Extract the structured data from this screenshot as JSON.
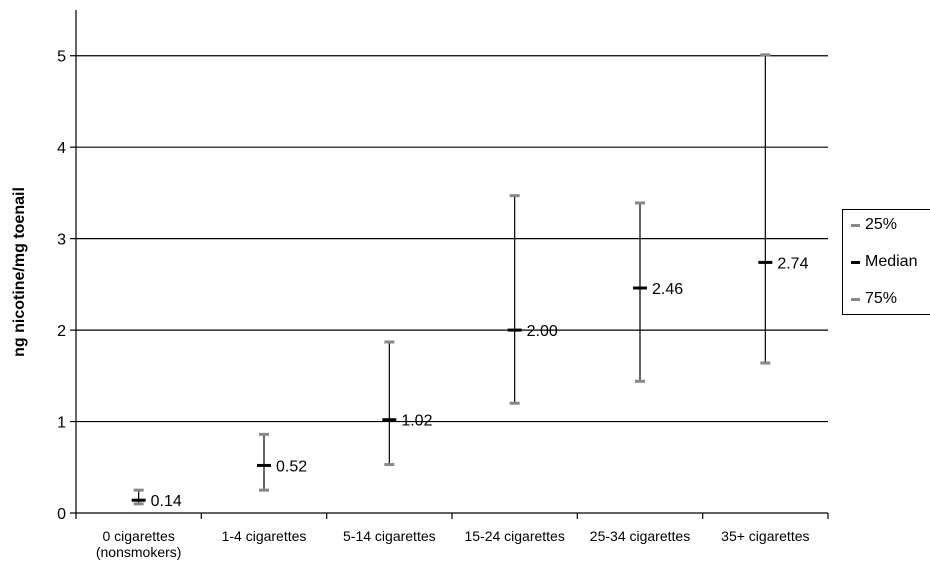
{
  "chart_data": {
    "type": "scatter",
    "subtype": "error-bar (min-max with median marker)",
    "title": "",
    "xlabel": "",
    "ylabel": "ng nicotine/mg toenail",
    "ylim": [
      0,
      5.5
    ],
    "yticks": [
      "0",
      "1",
      "2",
      "3",
      "4",
      "5"
    ],
    "categories": [
      [
        "0 cigarettes",
        "(nonsmokers)"
      ],
      [
        "1-4 cigarettes"
      ],
      [
        "5-14 cigarettes"
      ],
      [
        "15-24 cigarettes"
      ],
      [
        "25-34 cigarettes"
      ],
      [
        "35+ cigarettes"
      ]
    ],
    "series": [
      {
        "name": "25%",
        "values": [
          0.1,
          0.25,
          0.53,
          1.2,
          1.44,
          1.64
        ]
      },
      {
        "name": "Median",
        "values": [
          0.14,
          0.52,
          1.02,
          2.0,
          2.46,
          2.74
        ]
      },
      {
        "name": "75%",
        "values": [
          0.25,
          0.86,
          1.87,
          3.47,
          3.39,
          5.01
        ]
      }
    ],
    "median_labels": [
      "0.14",
      "0.52",
      "1.02",
      "2.00",
      "2.46",
      "2.74"
    ],
    "grid": true,
    "legend_position": "right",
    "colors": {
      "quartile": "#888888",
      "median": "#000000",
      "whisker": "#000000",
      "grid": "#000000"
    }
  }
}
